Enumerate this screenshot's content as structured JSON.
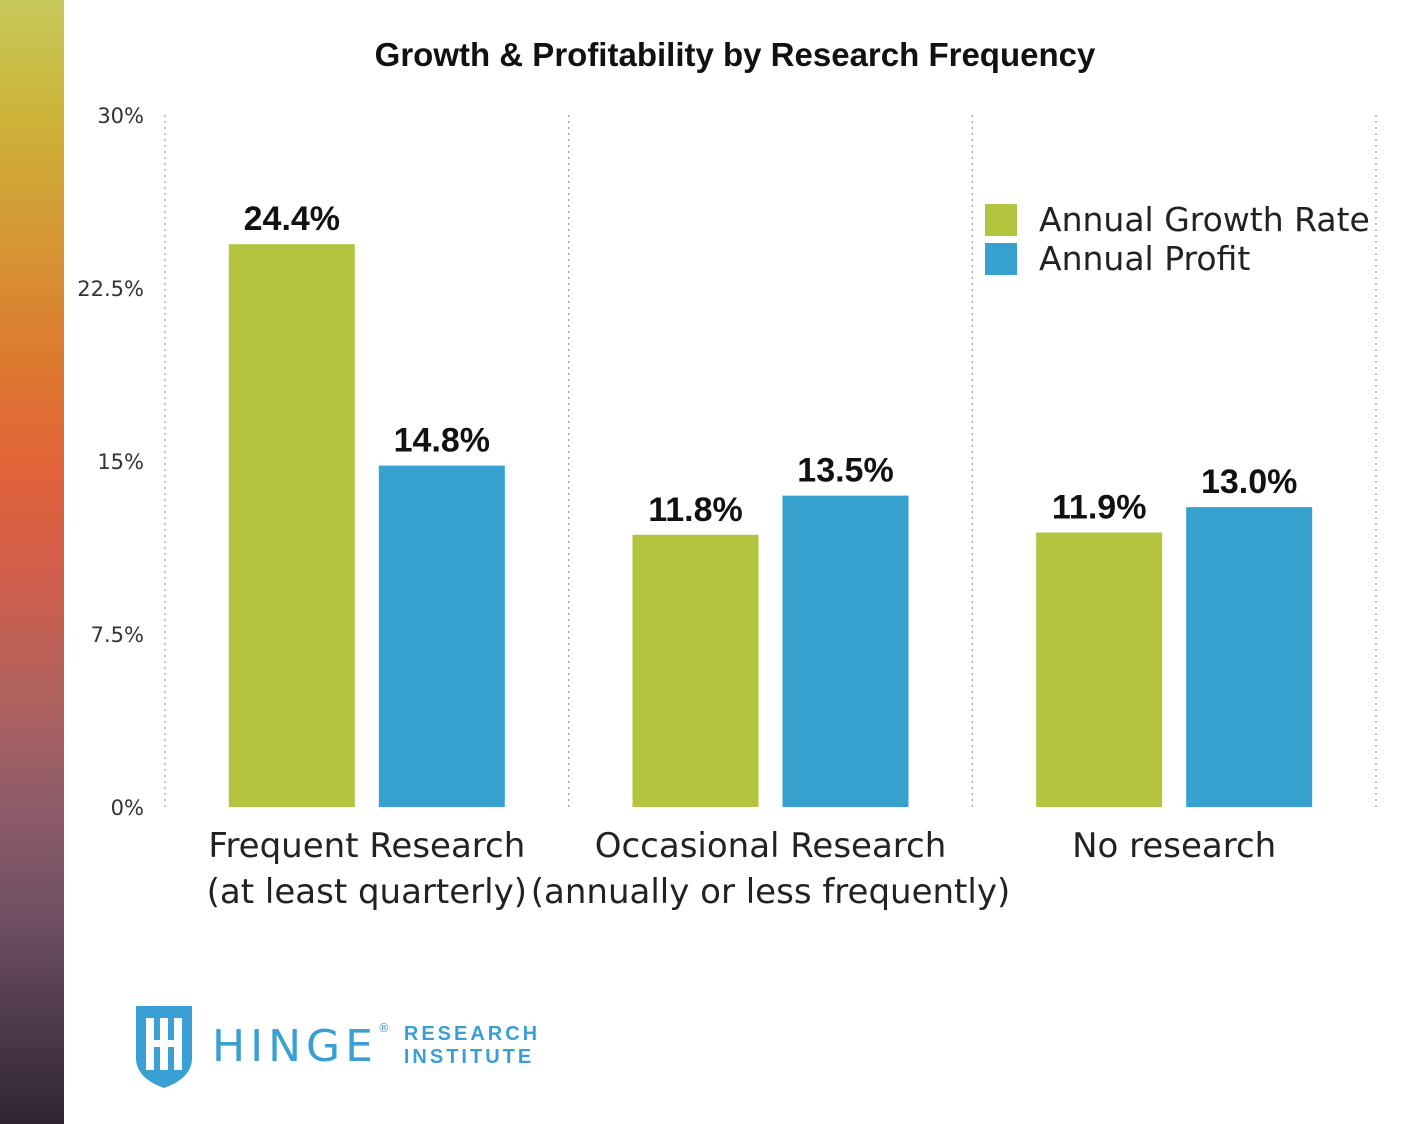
{
  "chart_data": {
    "type": "bar",
    "title": "Growth & Profitability by Research Frequency",
    "categories": [
      [
        "Frequent Research",
        "(at least quarterly)"
      ],
      [
        "Occasional Research",
        "(annually or less frequently)"
      ],
      [
        "No research"
      ]
    ],
    "series": [
      {
        "name": "Annual Growth Rate",
        "color": "#b5c43f",
        "values": [
          24.4,
          11.8,
          11.9
        ],
        "labels": [
          "24.4%",
          "11.8%",
          "11.9%"
        ]
      },
      {
        "name": "Annual Profit",
        "color": "#36a0cf",
        "values": [
          14.8,
          13.5,
          13.0
        ],
        "labels": [
          "14.8%",
          "13.5%",
          "13.0%"
        ]
      }
    ],
    "ylim": [
      0,
      30
    ],
    "yticks": [
      0,
      7.5,
      15,
      22.5,
      30
    ],
    "ytick_labels": [
      "0%",
      "7.5%",
      "15%",
      "22.5%",
      "30%"
    ],
    "legend_position": "top-right",
    "grid": "vertical dotted separators"
  },
  "logo": {
    "wordmark": "HINGE",
    "registered": "®",
    "line1": "RESEARCH",
    "line2": "INSTITUTE",
    "color": "#3a9fd3"
  }
}
